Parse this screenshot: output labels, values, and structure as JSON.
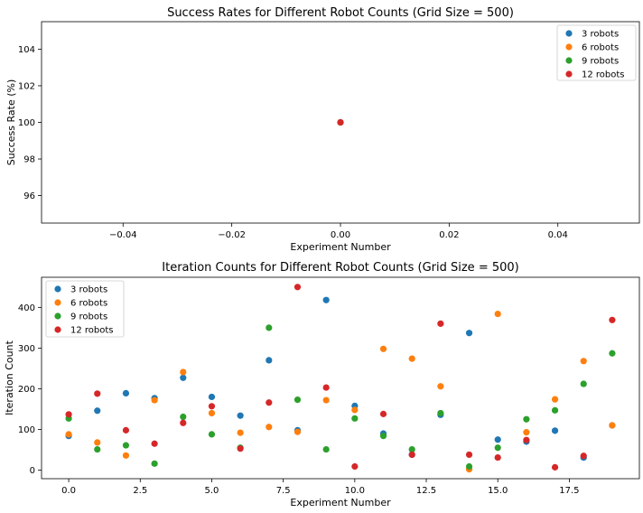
{
  "chart_data": [
    {
      "type": "scatter",
      "title": "Success Rates for Different Robot Counts (Grid Size = 500)",
      "xlabel": "Experiment Number",
      "ylabel": "Success Rate (%)",
      "xlim": [
        -0.055,
        0.055
      ],
      "ylim": [
        94.5,
        105.5
      ],
      "xticks": [
        -0.04,
        -0.02,
        0.0,
        0.02,
        0.04
      ],
      "xtick_labels": [
        "−0.04",
        "−0.02",
        "0.00",
        "0.02",
        "0.04"
      ],
      "yticks": [
        96,
        98,
        100,
        102,
        104
      ],
      "ytick_labels": [
        "96",
        "98",
        "100",
        "102",
        "104"
      ],
      "grid": false,
      "legend_position": "top-right",
      "series": [
        {
          "name": "3 robots",
          "color": "#1f77b4",
          "x": [
            0
          ],
          "y": [
            100
          ]
        },
        {
          "name": "6 robots",
          "color": "#ff7f0e",
          "x": [
            0
          ],
          "y": [
            100
          ]
        },
        {
          "name": "9 robots",
          "color": "#2ca02c",
          "x": [
            0
          ],
          "y": [
            100
          ]
        },
        {
          "name": "12 robots",
          "color": "#d62728",
          "x": [
            0
          ],
          "y": [
            100
          ]
        }
      ]
    },
    {
      "type": "scatter",
      "title": "Iteration Counts for Different Robot Counts (Grid Size = 500)",
      "xlabel": "Experiment Number",
      "ylabel": "Iteration Count",
      "xlim": [
        -0.95,
        19.95
      ],
      "ylim": [
        -21,
        474
      ],
      "xticks": [
        0,
        2.5,
        5,
        7.5,
        10,
        12.5,
        15,
        17.5
      ],
      "xtick_labels": [
        "0.0",
        "2.5",
        "5.0",
        "7.5",
        "10.0",
        "12.5",
        "15.0",
        "17.5"
      ],
      "yticks": [
        0,
        100,
        200,
        300,
        400
      ],
      "ytick_labels": [
        "0",
        "100",
        "200",
        "300",
        "400"
      ],
      "grid": false,
      "legend_position": "top-left",
      "series": [
        {
          "name": "3 robots",
          "color": "#1f77b4",
          "x": [
            0,
            1,
            2,
            3,
            4,
            5,
            6,
            7,
            8,
            9,
            10,
            11,
            12,
            13,
            14,
            15,
            16,
            17,
            18,
            19
          ],
          "y": [
            84,
            146,
            189,
            177,
            227,
            180,
            134,
            270,
            98,
            418,
            158,
            90,
            38,
            136,
            337,
            75,
            70,
            97,
            31,
            110
          ]
        },
        {
          "name": "6 robots",
          "color": "#ff7f0e",
          "x": [
            0,
            1,
            2,
            3,
            4,
            5,
            6,
            7,
            8,
            9,
            10,
            11,
            12,
            13,
            14,
            15,
            16,
            17,
            18,
            19
          ],
          "y": [
            88,
            68,
            36,
            172,
            241,
            140,
            92,
            106,
            94,
            172,
            148,
            298,
            274,
            206,
            2,
            384,
            93,
            174,
            268,
            110
          ]
        },
        {
          "name": "9 robots",
          "color": "#2ca02c",
          "x": [
            0,
            1,
            2,
            3,
            4,
            5,
            6,
            7,
            8,
            9,
            10,
            11,
            12,
            13,
            14,
            15,
            16,
            17,
            18,
            19
          ],
          "y": [
            127,
            51,
            61,
            16,
            131,
            88,
            55,
            350,
            173,
            51,
            127,
            84,
            51,
            140,
            9,
            55,
            125,
            147,
            212,
            287
          ]
        },
        {
          "name": "12 robots",
          "color": "#d62728",
          "x": [
            0,
            1,
            2,
            3,
            4,
            5,
            6,
            7,
            8,
            9,
            10,
            11,
            12,
            13,
            14,
            15,
            16,
            17,
            18,
            19
          ],
          "y": [
            137,
            188,
            98,
            65,
            116,
            157,
            53,
            166,
            450,
            203,
            9,
            138,
            38,
            360,
            38,
            31,
            74,
            7,
            35,
            369
          ]
        }
      ]
    }
  ]
}
